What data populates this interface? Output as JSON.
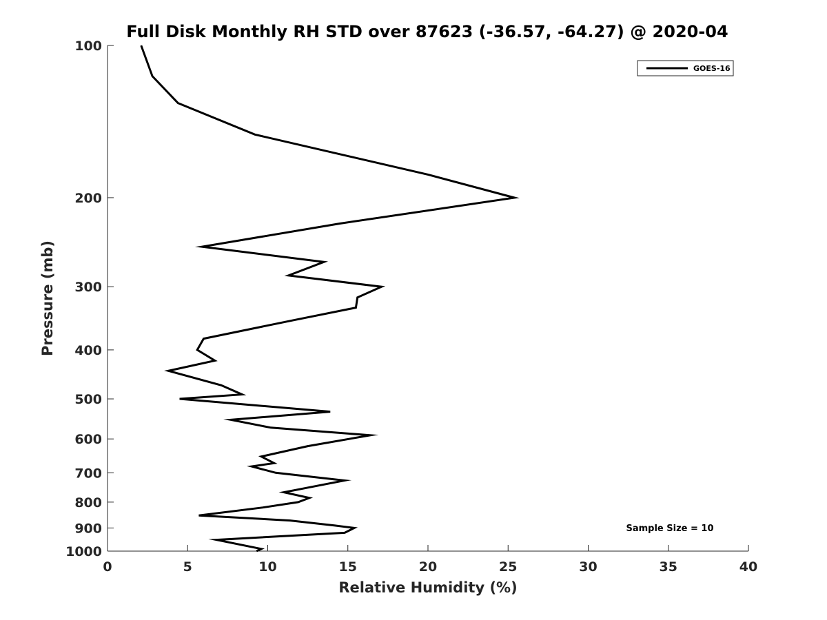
{
  "chart_data": {
    "type": "line",
    "title": "Full Disk Monthly RH STD over 87623 (-36.57, -64.27) @ 2020-04",
    "xlabel": "Relative Humidity (%)",
    "ylabel": "Pressure (mb)",
    "xlim": [
      0,
      40
    ],
    "ylim": [
      100,
      1000
    ],
    "y_scale": "log",
    "y_reversed": true,
    "x_ticks": [
      0,
      5,
      10,
      15,
      20,
      25,
      30,
      35,
      40
    ],
    "x_tick_labels": [
      "0",
      "5",
      "10",
      "15",
      "20",
      "25",
      "30",
      "35",
      "40"
    ],
    "y_ticks": [
      100,
      200,
      300,
      400,
      500,
      600,
      700,
      800,
      900,
      1000
    ],
    "y_tick_labels": [
      "100",
      "200",
      "300",
      "400",
      "500",
      "600",
      "700",
      "800",
      "900",
      "1000"
    ],
    "grid": false,
    "legend_position": "top-right",
    "annotation": "Sample Size = 10",
    "series": [
      {
        "name": "GOES-16",
        "color": "#000000",
        "x": [
          2.1,
          2.8,
          4.4,
          9.2,
          20.0,
          25.4,
          14.5,
          5.9,
          13.5,
          11.3,
          17.1,
          15.6,
          15.5,
          11.5,
          6.0,
          5.6,
          6.7,
          3.8,
          7.1,
          8.4,
          4.5,
          13.9,
          7.7,
          10.2,
          16.4,
          12.5,
          9.6,
          10.4,
          9.0,
          10.5,
          14.8,
          12.4,
          11.0,
          12.6,
          11.9,
          9.7,
          5.7,
          11.4,
          14.2,
          15.4,
          14.8,
          6.8,
          9.6,
          9.3
        ],
        "y": [
          100,
          115,
          130,
          150,
          180,
          200,
          225,
          250,
          268,
          285,
          300,
          315,
          330,
          350,
          380,
          400,
          420,
          440,
          470,
          490,
          500,
          530,
          550,
          570,
          590,
          620,
          650,
          670,
          680,
          700,
          725,
          750,
          765,
          785,
          800,
          820,
          850,
          870,
          890,
          900,
          920,
          950,
          990,
          1000
        ]
      }
    ]
  }
}
